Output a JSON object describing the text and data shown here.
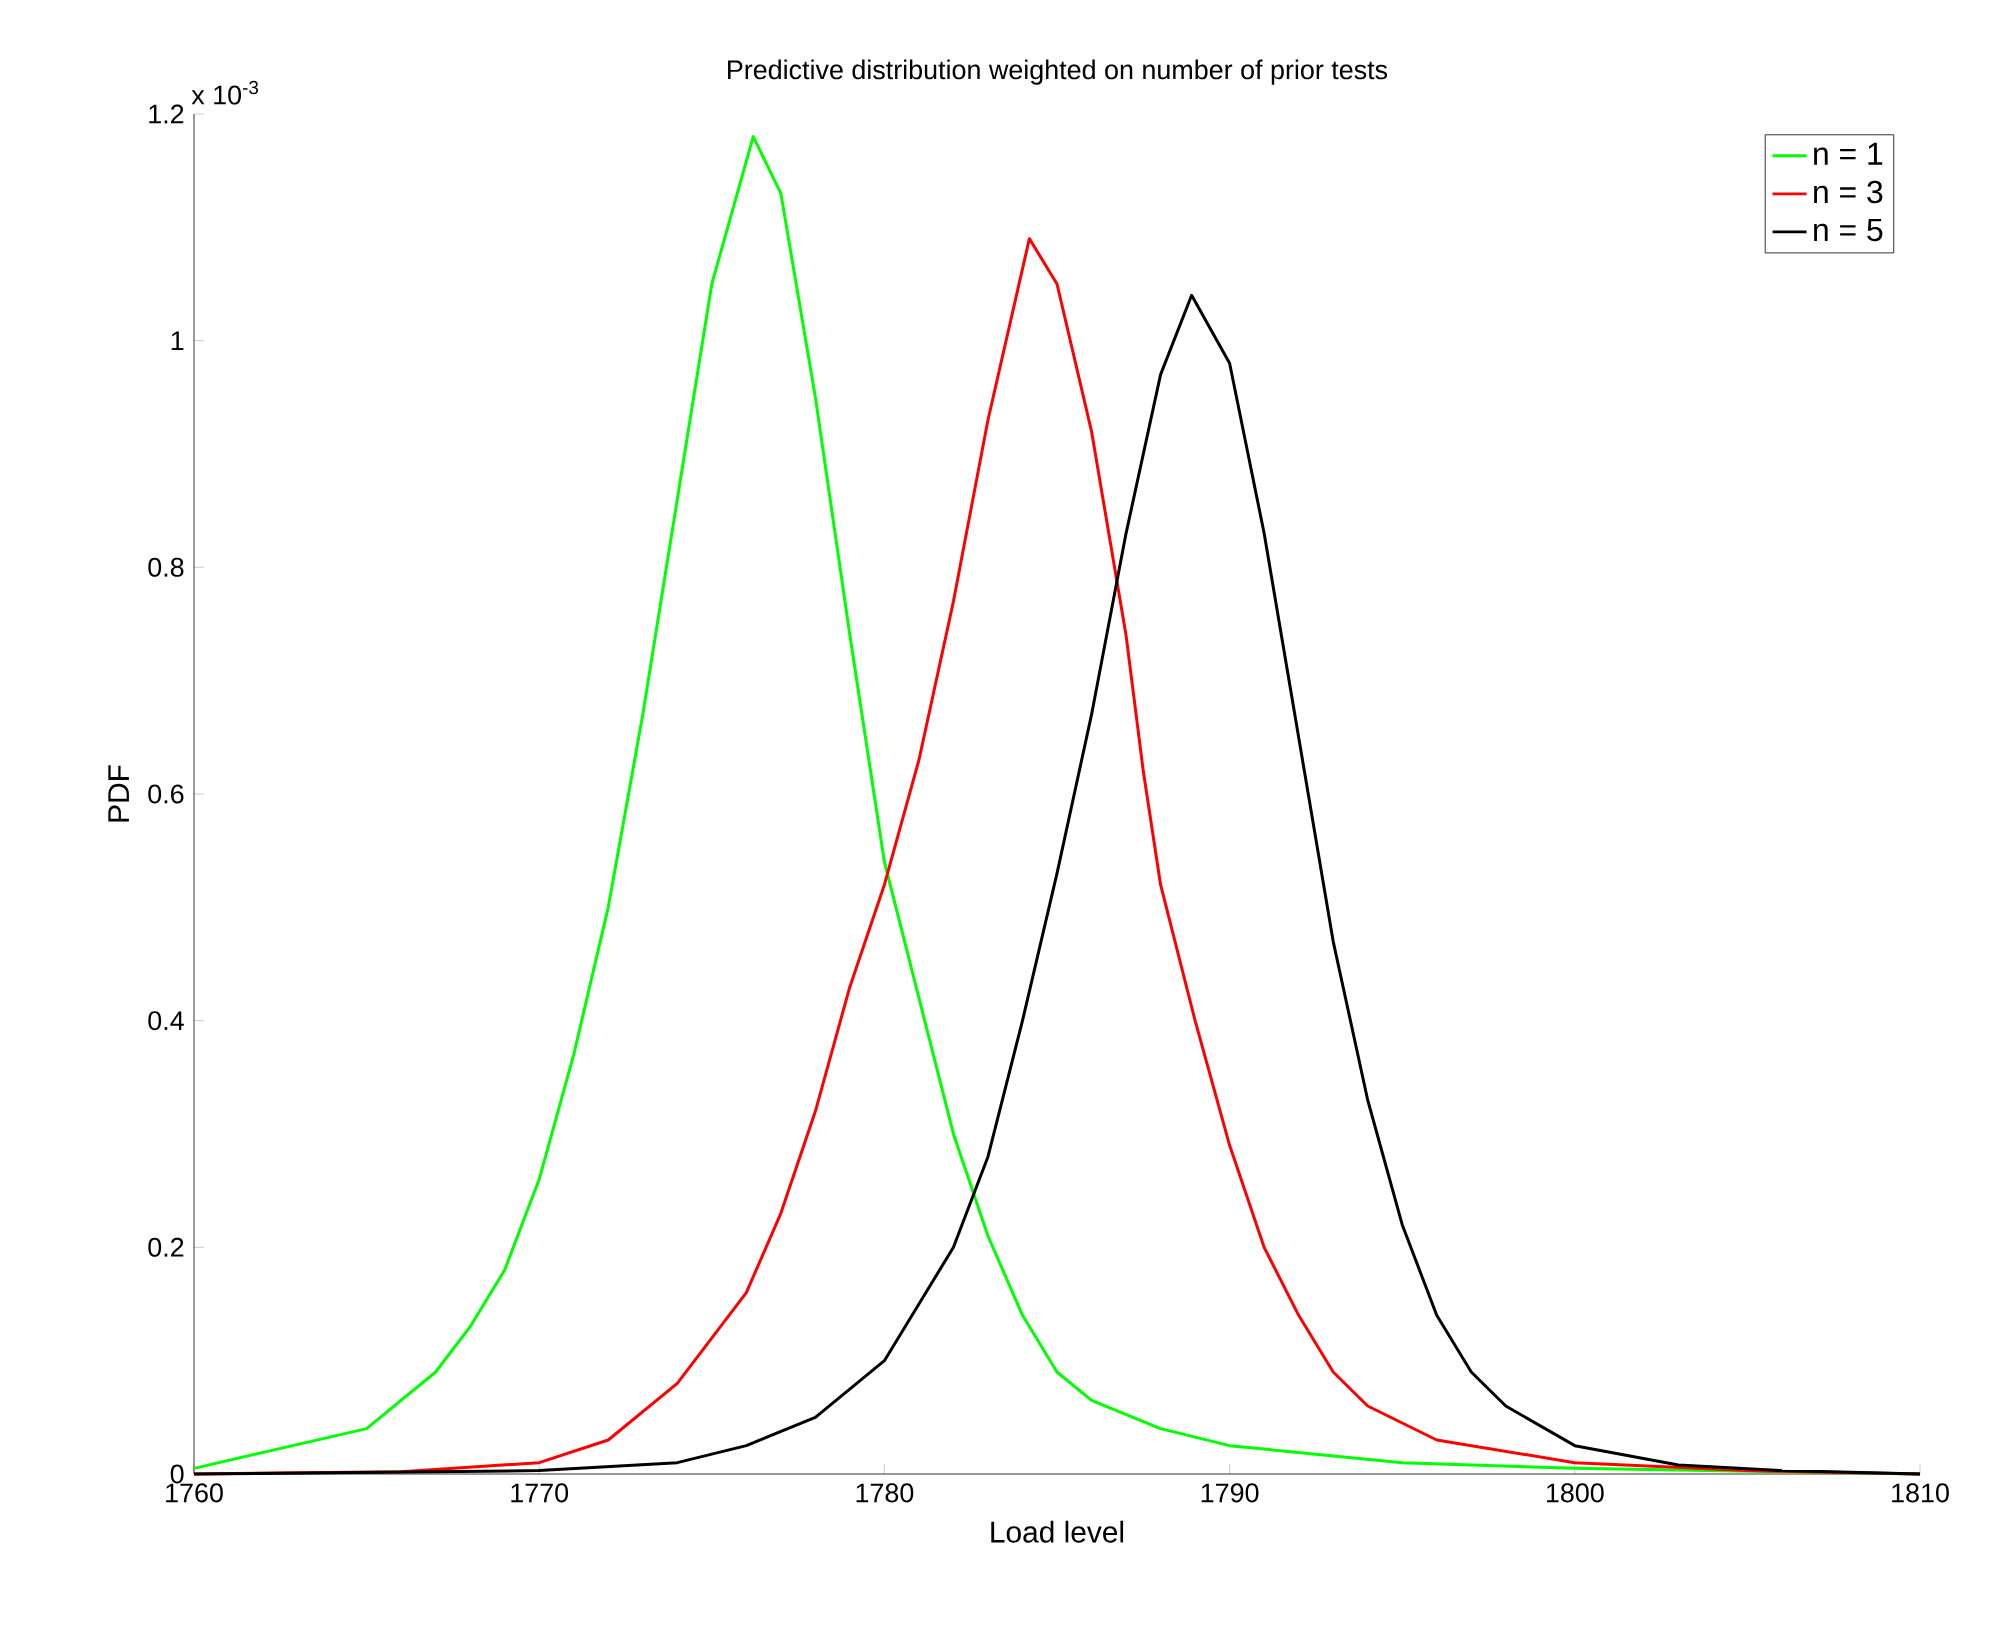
{
  "chart_data": {
    "type": "line",
    "title": "Predictive distribution weighted on number of prior tests",
    "xlabel": "Load level",
    "ylabel": "PDF",
    "annotations": [
      "x 10$^{-3}$"
    ],
    "xlim": [
      1760,
      1810
    ],
    "xticks": [
      1760,
      1770,
      1780,
      1790,
      1800,
      1810
    ],
    "ylim": [
      0,
      1.2
    ],
    "yticks": [
      0,
      0.2,
      0.4,
      0.6,
      0.8,
      1,
      1.2
    ],
    "legend": "top right",
    "series": [
      {
        "name": "n = 1",
        "color": "#00ff00",
        "x": [
          1760,
          1765,
          1767,
          1768,
          1769,
          1770,
          1771,
          1772,
          1773,
          1774,
          1775,
          1776.2,
          1777,
          1778,
          1779,
          1780,
          1781,
          1782,
          1783,
          1784,
          1785,
          1786,
          1788,
          1790,
          1795,
          1800,
          1810
        ],
        "values": [
          0.005,
          0.04,
          0.09,
          0.13,
          0.18,
          0.26,
          0.37,
          0.5,
          0.67,
          0.86,
          1.05,
          1.18,
          1.13,
          0.95,
          0.74,
          0.54,
          0.42,
          0.3,
          0.21,
          0.14,
          0.09,
          0.065,
          0.04,
          0.025,
          0.01,
          0.005,
          0
        ]
      },
      {
        "name": "n = 3",
        "color": "#ff0000",
        "x": [
          1760,
          1766,
          1770,
          1772,
          1774,
          1776,
          1777,
          1778,
          1779,
          1780,
          1781,
          1782,
          1783,
          1784.2,
          1785,
          1786,
          1787,
          1787.5,
          1788,
          1789,
          1790,
          1791,
          1792,
          1793,
          1794,
          1796,
          1800,
          1805,
          1810
        ],
        "values": [
          0,
          0.002,
          0.01,
          0.03,
          0.08,
          0.16,
          0.23,
          0.32,
          0.43,
          0.52,
          0.63,
          0.77,
          0.93,
          1.09,
          1.05,
          0.92,
          0.74,
          0.62,
          0.52,
          0.4,
          0.29,
          0.2,
          0.14,
          0.09,
          0.06,
          0.03,
          0.01,
          0.003,
          0
        ]
      },
      {
        "name": "n = 5",
        "color": "#000000",
        "x": [
          1760,
          1770,
          1774,
          1776,
          1778,
          1780,
          1781,
          1782,
          1783,
          1784,
          1785,
          1786,
          1787,
          1788,
          1788.9,
          1790,
          1791,
          1792,
          1793,
          1794,
          1795,
          1796,
          1797,
          1798,
          1800,
          1803,
          1806,
          1810
        ],
        "values": [
          0,
          0.003,
          0.01,
          0.025,
          0.05,
          0.1,
          0.15,
          0.2,
          0.28,
          0.4,
          0.53,
          0.67,
          0.83,
          0.97,
          1.04,
          0.98,
          0.83,
          0.65,
          0.47,
          0.33,
          0.22,
          0.14,
          0.09,
          0.06,
          0.025,
          0.008,
          0.003,
          0
        ]
      }
    ]
  }
}
